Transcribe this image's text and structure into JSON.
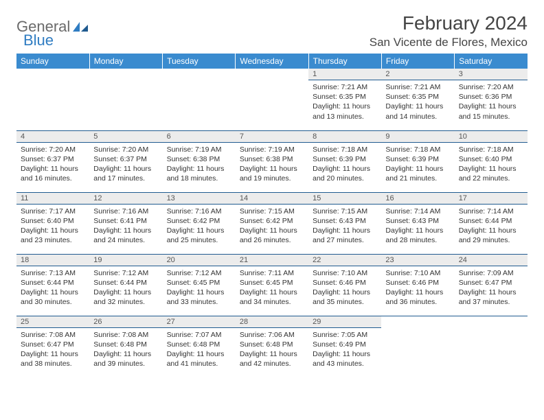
{
  "logo": {
    "text1": "General",
    "text2": "Blue"
  },
  "title": "February 2024",
  "location": "San Vicente de Flores, Mexico",
  "colors": {
    "header_bg": "#3a8bcf",
    "header_fg": "#ffffff",
    "daynum_bg": "#ececec",
    "border": "#1f5a8f",
    "logo_blue": "#2f7cc2"
  },
  "day_headers": [
    "Sunday",
    "Monday",
    "Tuesday",
    "Wednesday",
    "Thursday",
    "Friday",
    "Saturday"
  ],
  "weeks": [
    [
      {
        "empty": true
      },
      {
        "empty": true
      },
      {
        "empty": true
      },
      {
        "empty": true
      },
      {
        "n": "1",
        "sr": "7:21 AM",
        "ss": "6:35 PM",
        "dl1": "Daylight: 11 hours",
        "dl2": "and 13 minutes."
      },
      {
        "n": "2",
        "sr": "7:21 AM",
        "ss": "6:35 PM",
        "dl1": "Daylight: 11 hours",
        "dl2": "and 14 minutes."
      },
      {
        "n": "3",
        "sr": "7:20 AM",
        "ss": "6:36 PM",
        "dl1": "Daylight: 11 hours",
        "dl2": "and 15 minutes."
      }
    ],
    [
      {
        "n": "4",
        "sr": "7:20 AM",
        "ss": "6:37 PM",
        "dl1": "Daylight: 11 hours",
        "dl2": "and 16 minutes."
      },
      {
        "n": "5",
        "sr": "7:20 AM",
        "ss": "6:37 PM",
        "dl1": "Daylight: 11 hours",
        "dl2": "and 17 minutes."
      },
      {
        "n": "6",
        "sr": "7:19 AM",
        "ss": "6:38 PM",
        "dl1": "Daylight: 11 hours",
        "dl2": "and 18 minutes."
      },
      {
        "n": "7",
        "sr": "7:19 AM",
        "ss": "6:38 PM",
        "dl1": "Daylight: 11 hours",
        "dl2": "and 19 minutes."
      },
      {
        "n": "8",
        "sr": "7:18 AM",
        "ss": "6:39 PM",
        "dl1": "Daylight: 11 hours",
        "dl2": "and 20 minutes."
      },
      {
        "n": "9",
        "sr": "7:18 AM",
        "ss": "6:39 PM",
        "dl1": "Daylight: 11 hours",
        "dl2": "and 21 minutes."
      },
      {
        "n": "10",
        "sr": "7:18 AM",
        "ss": "6:40 PM",
        "dl1": "Daylight: 11 hours",
        "dl2": "and 22 minutes."
      }
    ],
    [
      {
        "n": "11",
        "sr": "7:17 AM",
        "ss": "6:40 PM",
        "dl1": "Daylight: 11 hours",
        "dl2": "and 23 minutes."
      },
      {
        "n": "12",
        "sr": "7:16 AM",
        "ss": "6:41 PM",
        "dl1": "Daylight: 11 hours",
        "dl2": "and 24 minutes."
      },
      {
        "n": "13",
        "sr": "7:16 AM",
        "ss": "6:42 PM",
        "dl1": "Daylight: 11 hours",
        "dl2": "and 25 minutes."
      },
      {
        "n": "14",
        "sr": "7:15 AM",
        "ss": "6:42 PM",
        "dl1": "Daylight: 11 hours",
        "dl2": "and 26 minutes."
      },
      {
        "n": "15",
        "sr": "7:15 AM",
        "ss": "6:43 PM",
        "dl1": "Daylight: 11 hours",
        "dl2": "and 27 minutes."
      },
      {
        "n": "16",
        "sr": "7:14 AM",
        "ss": "6:43 PM",
        "dl1": "Daylight: 11 hours",
        "dl2": "and 28 minutes."
      },
      {
        "n": "17",
        "sr": "7:14 AM",
        "ss": "6:44 PM",
        "dl1": "Daylight: 11 hours",
        "dl2": "and 29 minutes."
      }
    ],
    [
      {
        "n": "18",
        "sr": "7:13 AM",
        "ss": "6:44 PM",
        "dl1": "Daylight: 11 hours",
        "dl2": "and 30 minutes."
      },
      {
        "n": "19",
        "sr": "7:12 AM",
        "ss": "6:44 PM",
        "dl1": "Daylight: 11 hours",
        "dl2": "and 32 minutes."
      },
      {
        "n": "20",
        "sr": "7:12 AM",
        "ss": "6:45 PM",
        "dl1": "Daylight: 11 hours",
        "dl2": "and 33 minutes."
      },
      {
        "n": "21",
        "sr": "7:11 AM",
        "ss": "6:45 PM",
        "dl1": "Daylight: 11 hours",
        "dl2": "and 34 minutes."
      },
      {
        "n": "22",
        "sr": "7:10 AM",
        "ss": "6:46 PM",
        "dl1": "Daylight: 11 hours",
        "dl2": "and 35 minutes."
      },
      {
        "n": "23",
        "sr": "7:10 AM",
        "ss": "6:46 PM",
        "dl1": "Daylight: 11 hours",
        "dl2": "and 36 minutes."
      },
      {
        "n": "24",
        "sr": "7:09 AM",
        "ss": "6:47 PM",
        "dl1": "Daylight: 11 hours",
        "dl2": "and 37 minutes."
      }
    ],
    [
      {
        "n": "25",
        "sr": "7:08 AM",
        "ss": "6:47 PM",
        "dl1": "Daylight: 11 hours",
        "dl2": "and 38 minutes."
      },
      {
        "n": "26",
        "sr": "7:08 AM",
        "ss": "6:48 PM",
        "dl1": "Daylight: 11 hours",
        "dl2": "and 39 minutes."
      },
      {
        "n": "27",
        "sr": "7:07 AM",
        "ss": "6:48 PM",
        "dl1": "Daylight: 11 hours",
        "dl2": "and 41 minutes."
      },
      {
        "n": "28",
        "sr": "7:06 AM",
        "ss": "6:48 PM",
        "dl1": "Daylight: 11 hours",
        "dl2": "and 42 minutes."
      },
      {
        "n": "29",
        "sr": "7:05 AM",
        "ss": "6:49 PM",
        "dl1": "Daylight: 11 hours",
        "dl2": "and 43 minutes."
      },
      {
        "empty": true
      },
      {
        "empty": true
      }
    ]
  ]
}
